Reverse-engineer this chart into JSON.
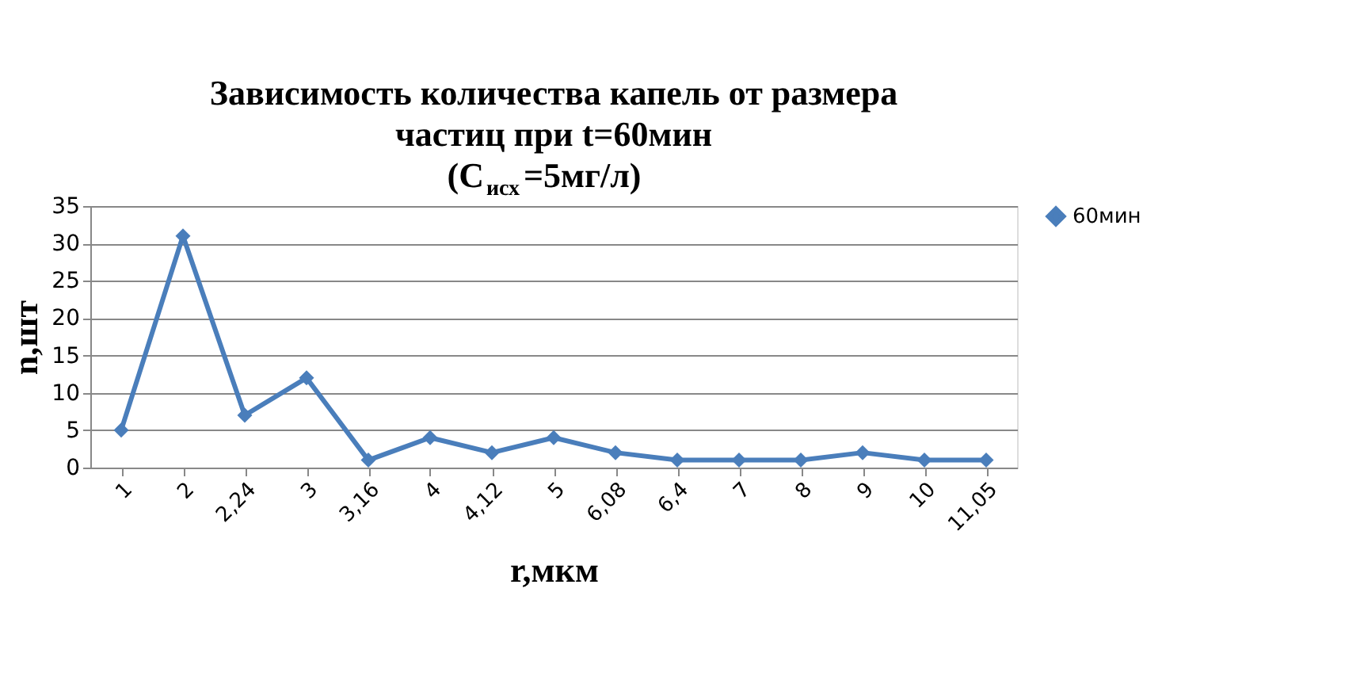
{
  "chart_data": {
    "type": "line",
    "title": "Зависимость количества капель от размера частиц при t=60мин (С$_{исх}$=5мг/л)",
    "xlabel": "r,мкм",
    "ylabel": "n,шт",
    "categories": [
      "1",
      "2",
      "2,24",
      "3",
      "3,16",
      "4",
      "4,12",
      "5",
      "6,08",
      "6,4",
      "7",
      "8",
      "9",
      "10",
      "11,05"
    ],
    "series": [
      {
        "name": "60мин",
        "color": "#4a7ebb",
        "values": [
          5,
          31,
          7,
          12,
          1,
          4,
          2,
          4,
          2,
          1,
          1,
          1,
          2,
          1,
          1
        ]
      }
    ],
    "ylim": [
      0,
      35
    ],
    "yticks": [
      0,
      5,
      10,
      15,
      20,
      25,
      30,
      35
    ],
    "grid": "y",
    "legend": "right",
    "marker": "diamond",
    "line_style": "solid"
  }
}
